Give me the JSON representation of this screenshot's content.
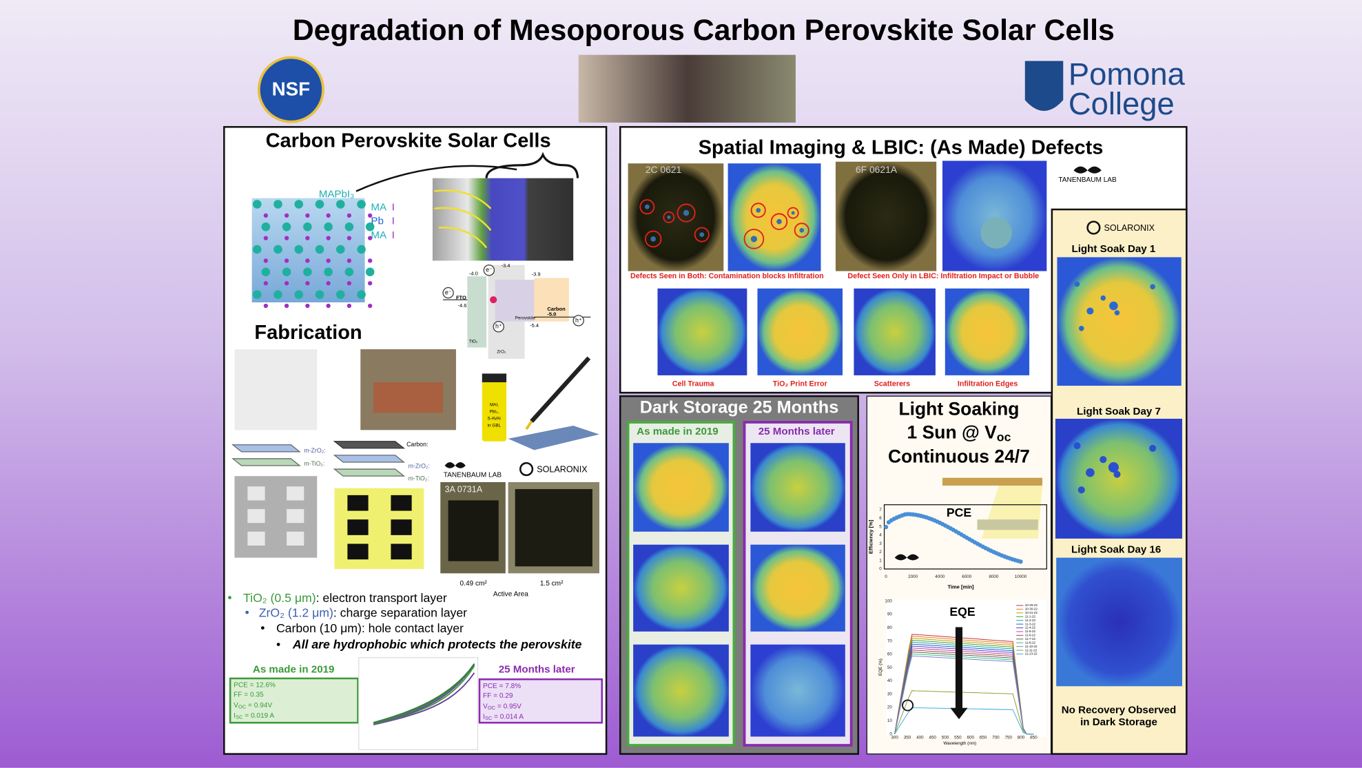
{
  "header": {
    "title": "Degradation of Mesoporous Carbon Perovskite Solar Cells",
    "nsf": "NSF",
    "college": {
      "line1": "Pomona",
      "line2": "College"
    }
  },
  "structure": {
    "heading": "Carbon Perovskite Solar Cells",
    "crystal": "MAPbI₃",
    "layers": [
      {
        "ion": "MA",
        "halide": "I"
      },
      {
        "ion": "Pb",
        "halide": "I"
      },
      {
        "ion": "MA",
        "halide": "I"
      }
    ]
  },
  "band_diagram": {
    "levels": [
      "-3.4",
      "-3.9",
      "-4.0",
      "-4.6",
      "-5.0",
      "-5.4"
    ],
    "fto": "FTO",
    "perovskite": "Perovskite",
    "carbon": "Carbon",
    "tio2": "TiO₂",
    "zro2": "ZrO₂",
    "electron": "e⁻",
    "hole": "h⁺"
  },
  "fabrication": {
    "heading": "Fabrication",
    "vial": [
      "MAI,",
      "PbI₂,",
      "5-AVAI",
      "in GBL"
    ],
    "stack_a": [
      "m-ZrO₂:",
      "m-TiO₂:"
    ],
    "stack_b": [
      "Carbon:",
      "m-ZrO₂:",
      "m-TiO₂:"
    ],
    "lab": "TANENBAUM LAB",
    "supplier": "SOLARONIX",
    "cell_id": "3A 0731A",
    "areas": [
      "0.49 cm²",
      "1.5 cm²"
    ],
    "area_caption": "Active Area"
  },
  "layers_list": [
    {
      "name": "TiO₂ (0.5 μm)",
      "role": ": electron transport layer"
    },
    {
      "name": "ZrO₂ (1.2 μm)",
      "role": ": charge separation layer"
    },
    {
      "name": "Carbon (10 μm)",
      "role": ": hole contact layer"
    }
  ],
  "layers_note": "All are hydrophobic which protects the perovskite",
  "jv": {
    "before": {
      "heading": "As made in 2019",
      "pce": "PCE = 12.6%",
      "ff": "FF = 0.35",
      "voc": {
        "symbol": "V",
        "sub": "OC",
        "text": " = 0.94V"
      },
      "isc": {
        "symbol": "I",
        "sub": "SC",
        "text": " = 0.019 A"
      }
    },
    "after": {
      "heading": "25 Months later",
      "pce": "PCE = 7.8%",
      "ff": "FF = 0.29",
      "voc": {
        "symbol": "V",
        "sub": "OC",
        "text": " = 0.95V"
      },
      "isc": {
        "symbol": "I",
        "sub": "SC",
        "text": " = 0.014 A"
      }
    }
  },
  "spatial": {
    "heading": "Spatial Imaging & LBIC:  (As Made) Defects",
    "lab": "TANENBAUM LAB",
    "cell_ids": [
      "2C 0621",
      "6F 0621A"
    ],
    "captions": [
      "Defects Seen in Both: Contamination blocks Infiltration",
      "Defect Seen Only in LBIC: Infiltration Impact or Bubble"
    ],
    "defects": [
      "Cell Trauma",
      "TiO₂ Print Error",
      "Scatterers",
      "Infiltration Edges"
    ]
  },
  "dark_storage": {
    "heading": "Dark Storage 25 Months",
    "columns": [
      "As made in 2019",
      "25 Months later"
    ]
  },
  "light_soaking": {
    "line1": "Light Soaking",
    "line2": {
      "text": "1 Sun @ ",
      "symbol": "V",
      "sub": "oc"
    },
    "line3": "Continuous 24/7",
    "pce": {
      "title": "PCE",
      "ylabel": "Efficiency [%]",
      "xlabel": "Time [min]",
      "yticks": [
        "0",
        "1",
        "2",
        "3",
        "4",
        "5",
        "6",
        "7"
      ],
      "xticks": [
        "0",
        "2000",
        "4000",
        "6000",
        "8000",
        "10000"
      ]
    },
    "eqe": {
      "title": "EQE",
      "ylabel": "EQE (%)",
      "xlabel": "Wavelength (nm)",
      "yticks": [
        "0",
        "10",
        "20",
        "30",
        "40",
        "50",
        "60",
        "70",
        "80",
        "90",
        "100"
      ],
      "xticks": [
        "300",
        "350",
        "400",
        "450",
        "500",
        "550",
        "600",
        "650",
        "700",
        "750",
        "800",
        "850"
      ],
      "legend": [
        "10-29-22",
        "10-30-22",
        "10-31-22",
        "11-1-22",
        "11-2-22",
        "11-3-22",
        "11-4-22",
        "11-5-22",
        "11-6-22",
        "11-7-22",
        "11-8-22",
        "11-10-22",
        "11-11-22",
        "11-13-22"
      ]
    }
  },
  "solaronix": {
    "supplier": "SOLARONIX",
    "days": [
      "Light Soak Day 1",
      "Light Soak Day 7",
      "Light Soak Day 16"
    ],
    "note": [
      "No Recovery Observed",
      "in Dark Storage"
    ]
  }
}
